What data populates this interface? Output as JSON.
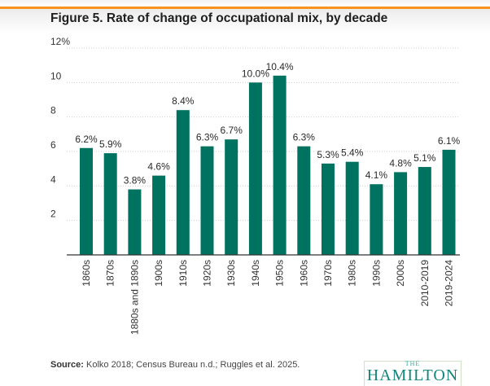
{
  "title": "Figure 5. Rate of change of occupational mix, by decade",
  "source_label": "Source:",
  "source_text": " Kolko 2018; Census Bureau n.d.; Ruggles et al. 2025.",
  "logo": {
    "the": "THE",
    "name": "HAMILTON"
  },
  "colors": {
    "bar": "#007360",
    "accent": "#f7931e"
  },
  "chart_data": {
    "type": "bar",
    "title": "Figure 5. Rate of change of occupational mix, by decade",
    "xlabel": "",
    "ylabel": "",
    "ylim": [
      0,
      12
    ],
    "yticks": [
      2,
      4,
      6,
      8,
      10,
      12
    ],
    "ytick_labels": [
      "2",
      "4",
      "6",
      "8",
      "10",
      "12%"
    ],
    "grid": true,
    "categories": [
      "1860s",
      "1870s",
      "1880s and 1890s",
      "1900s",
      "1910s",
      "1920s",
      "1930s",
      "1940s",
      "1950s",
      "1960s",
      "1970s",
      "1980s",
      "1990s",
      "2000s",
      "2010-2019",
      "2019-2024"
    ],
    "values": [
      6.2,
      5.9,
      3.8,
      4.6,
      8.4,
      6.3,
      6.7,
      10.0,
      10.4,
      6.3,
      5.3,
      5.4,
      4.1,
      4.8,
      5.1,
      6.1
    ],
    "data_labels": [
      "6.2%",
      "5.9%",
      "3.8%",
      "4.6%",
      "8.4%",
      "6.3%",
      "6.7%",
      "10.0%",
      "10.4%",
      "6.3%",
      "5.3%",
      "5.4%",
      "4.1%",
      "4.8%",
      "5.1%",
      "6.1%"
    ]
  }
}
